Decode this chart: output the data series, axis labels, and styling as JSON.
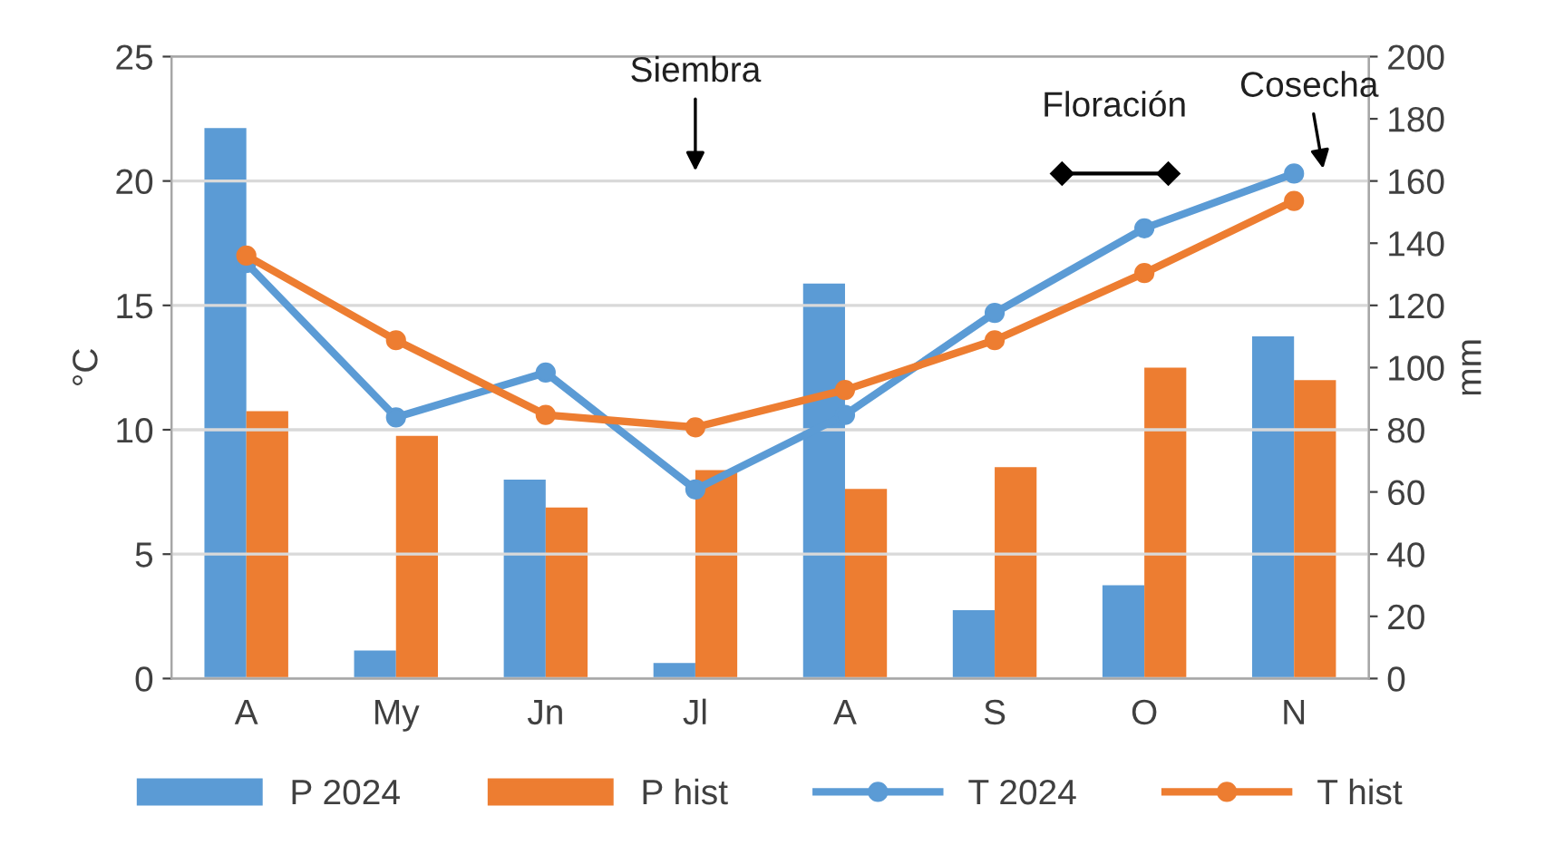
{
  "chart_data": {
    "type": "bar",
    "ylabel": "°C",
    "y2label": "mm",
    "categories": [
      "A",
      "My",
      "Jn",
      "Jl",
      "A",
      "S",
      "O",
      "N"
    ],
    "series": [
      {
        "name": "P 2024",
        "axis": "y2",
        "color": "#5b9bd5",
        "values": [
          177,
          9,
          64,
          5,
          127,
          22,
          30,
          110
        ]
      },
      {
        "name": "P hist",
        "axis": "y2",
        "color": "#ed7d31",
        "values": [
          86,
          78,
          55,
          67,
          61,
          68,
          100,
          96
        ]
      },
      {
        "name": "T 2024",
        "type": "line",
        "color": "#5b9bd5",
        "values": [
          16.7,
          10.5,
          12.3,
          7.6,
          10.6,
          14.7,
          18.1,
          20.3
        ]
      },
      {
        "name": "T hist",
        "type": "line",
        "color": "#ed7d31",
        "values": [
          17.0,
          13.6,
          10.6,
          10.1,
          11.6,
          13.6,
          16.3,
          19.2
        ]
      }
    ],
    "ylim": [
      0,
      25
    ],
    "yticks": [
      0,
      5,
      10,
      15,
      20,
      25
    ],
    "y2lim": [
      0,
      200
    ],
    "y2ticks": [
      0,
      20,
      40,
      60,
      80,
      100,
      120,
      140,
      160,
      180,
      200
    ],
    "grid": "y",
    "legend": "bottom",
    "marker": "circle",
    "line_style": "solid",
    "annotations": [
      "Siembra",
      "Floración",
      "Cosecha"
    ]
  }
}
